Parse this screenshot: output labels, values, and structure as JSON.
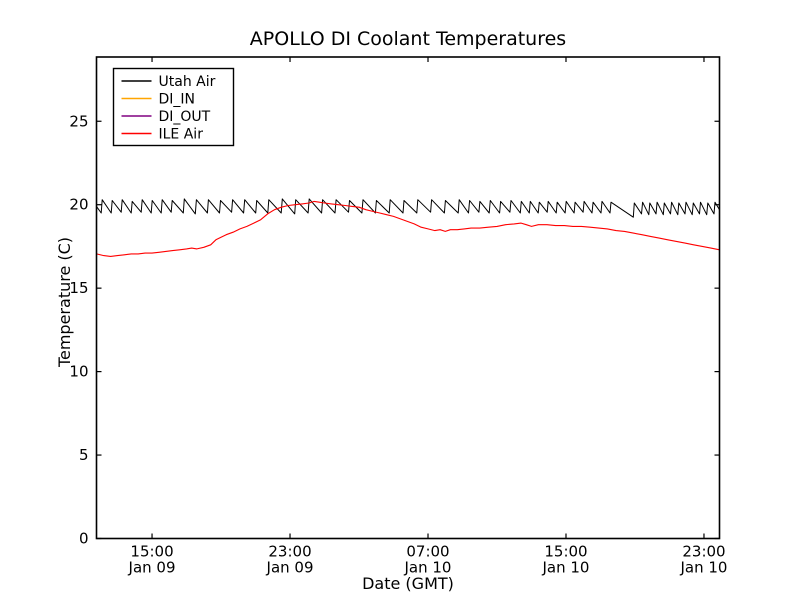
{
  "figure": {
    "background": "#ffffff",
    "frame_color": "#000000"
  },
  "chart_data": {
    "type": "line",
    "title": "APOLLO DI Coolant Temperatures",
    "xlabel": "Date (GMT)",
    "ylabel": "Temperature (C)",
    "x_unit": "hours since Jan 09 00:00 GMT",
    "xlim": [
      11.78,
      47.9
    ],
    "ylim": [
      0,
      28.85
    ],
    "grid": false,
    "yticks": [
      0,
      5,
      10,
      15,
      20,
      25
    ],
    "xticks": [
      {
        "t": 15,
        "time": "15:00",
        "date": "Jan 09"
      },
      {
        "t": 23,
        "time": "23:00",
        "date": "Jan 09"
      },
      {
        "t": 31,
        "time": "07:00",
        "date": "Jan 10"
      },
      {
        "t": 39,
        "time": "15:00",
        "date": "Jan 10"
      },
      {
        "t": 47,
        "time": "23:00",
        "date": "Jan 10"
      }
    ],
    "legend": {
      "position": "upper left",
      "entries": [
        {
          "label": "Utah Air",
          "color": "#000000"
        },
        {
          "label": "DI_IN",
          "color": "#ffa500"
        },
        {
          "label": "DI_OUT",
          "color": "#800080"
        },
        {
          "label": "ILE Air",
          "color": "#ff0000"
        }
      ]
    },
    "series": [
      {
        "name": "Utah Air",
        "color": "#000000",
        "width": 1.0,
        "points": [
          [
            11.78,
            19.9
          ],
          [
            12.05,
            19.5
          ],
          [
            12.11,
            20.3
          ],
          [
            12.63,
            19.5
          ],
          [
            12.69,
            20.25
          ],
          [
            13.21,
            19.55
          ],
          [
            13.27,
            20.3
          ],
          [
            13.79,
            19.5
          ],
          [
            13.85,
            20.2
          ],
          [
            14.37,
            19.55
          ],
          [
            14.43,
            20.3
          ],
          [
            14.95,
            19.5
          ],
          [
            15.01,
            20.25
          ],
          [
            15.53,
            19.5
          ],
          [
            15.59,
            20.3
          ],
          [
            16.11,
            19.55
          ],
          [
            16.17,
            20.25
          ],
          [
            16.81,
            19.5
          ],
          [
            16.87,
            20.35
          ],
          [
            17.51,
            19.45
          ],
          [
            17.57,
            20.3
          ],
          [
            18.21,
            19.5
          ],
          [
            18.27,
            20.3
          ],
          [
            18.91,
            19.5
          ],
          [
            18.97,
            20.25
          ],
          [
            19.61,
            19.55
          ],
          [
            19.67,
            20.3
          ],
          [
            20.31,
            19.5
          ],
          [
            20.37,
            20.3
          ],
          [
            21.01,
            19.5
          ],
          [
            21.07,
            20.25
          ],
          [
            21.71,
            19.5
          ],
          [
            21.77,
            20.3
          ],
          [
            22.49,
            19.5
          ],
          [
            22.55,
            20.35
          ],
          [
            23.27,
            19.45
          ],
          [
            23.33,
            20.3
          ],
          [
            24.05,
            19.5
          ],
          [
            24.11,
            20.35
          ],
          [
            24.83,
            19.5
          ],
          [
            24.89,
            20.3
          ],
          [
            25.61,
            19.5
          ],
          [
            25.67,
            20.3
          ],
          [
            26.39,
            19.55
          ],
          [
            26.45,
            20.25
          ],
          [
            27.17,
            19.5
          ],
          [
            27.23,
            20.3
          ],
          [
            27.95,
            19.5
          ],
          [
            28.01,
            20.25
          ],
          [
            28.75,
            19.5
          ],
          [
            28.81,
            20.3
          ],
          [
            29.55,
            19.5
          ],
          [
            29.61,
            20.25
          ],
          [
            30.35,
            19.5
          ],
          [
            30.41,
            20.3
          ],
          [
            31.15,
            19.55
          ],
          [
            31.21,
            20.3
          ],
          [
            31.95,
            19.5
          ],
          [
            32.01,
            20.25
          ],
          [
            32.75,
            19.5
          ],
          [
            32.81,
            20.3
          ],
          [
            33.35,
            19.5
          ],
          [
            33.41,
            20.25
          ],
          [
            33.95,
            19.55
          ],
          [
            34.01,
            20.2
          ],
          [
            34.55,
            19.5
          ],
          [
            34.61,
            20.25
          ],
          [
            35.15,
            19.5
          ],
          [
            35.21,
            20.2
          ],
          [
            35.75,
            19.55
          ],
          [
            35.81,
            20.25
          ],
          [
            36.35,
            19.5
          ],
          [
            36.41,
            20.2
          ],
          [
            36.87,
            19.5
          ],
          [
            36.93,
            20.2
          ],
          [
            37.39,
            19.5
          ],
          [
            37.45,
            20.15
          ],
          [
            37.91,
            19.55
          ],
          [
            37.97,
            20.2
          ],
          [
            38.43,
            19.5
          ],
          [
            38.49,
            20.15
          ],
          [
            38.95,
            19.5
          ],
          [
            39.01,
            20.2
          ],
          [
            39.47,
            19.5
          ],
          [
            39.53,
            20.15
          ],
          [
            39.99,
            19.55
          ],
          [
            40.05,
            20.2
          ],
          [
            40.51,
            19.5
          ],
          [
            40.57,
            20.15
          ],
          [
            41.03,
            19.5
          ],
          [
            41.09,
            20.2
          ],
          [
            41.55,
            19.5
          ],
          [
            41.61,
            20.15
          ],
          [
            42.9,
            19.25
          ],
          [
            42.96,
            20.1
          ],
          [
            43.38,
            19.45
          ],
          [
            43.44,
            20.15
          ],
          [
            43.8,
            19.4
          ],
          [
            43.86,
            20.1
          ],
          [
            44.22,
            19.45
          ],
          [
            44.28,
            20.15
          ],
          [
            44.64,
            19.4
          ],
          [
            44.7,
            20.1
          ],
          [
            45.06,
            19.45
          ],
          [
            45.12,
            20.15
          ],
          [
            45.48,
            19.4
          ],
          [
            45.54,
            20.1
          ],
          [
            45.9,
            19.45
          ],
          [
            45.96,
            20.15
          ],
          [
            46.32,
            19.4
          ],
          [
            46.38,
            20.1
          ],
          [
            46.74,
            19.45
          ],
          [
            46.8,
            20.15
          ],
          [
            47.16,
            19.4
          ],
          [
            47.22,
            20.1
          ],
          [
            47.58,
            19.45
          ],
          [
            47.64,
            20.15
          ],
          [
            47.9,
            19.7
          ]
        ]
      },
      {
        "name": "DI_IN",
        "color": "#ffa500",
        "width": 1.0,
        "points": []
      },
      {
        "name": "DI_OUT",
        "color": "#800080",
        "width": 1.0,
        "points": []
      },
      {
        "name": "ILE Air",
        "color": "#ff0000",
        "width": 1.1,
        "points": [
          [
            11.78,
            17.05
          ],
          [
            12.2,
            16.95
          ],
          [
            12.6,
            16.9
          ],
          [
            13.0,
            16.95
          ],
          [
            13.4,
            17.0
          ],
          [
            13.8,
            17.05
          ],
          [
            14.2,
            17.05
          ],
          [
            14.6,
            17.1
          ],
          [
            15.0,
            17.1
          ],
          [
            15.4,
            17.15
          ],
          [
            15.8,
            17.2
          ],
          [
            16.2,
            17.25
          ],
          [
            16.6,
            17.3
          ],
          [
            17.0,
            17.35
          ],
          [
            17.3,
            17.4
          ],
          [
            17.6,
            17.35
          ],
          [
            18.0,
            17.45
          ],
          [
            18.4,
            17.6
          ],
          [
            18.7,
            17.9
          ],
          [
            19.0,
            18.05
          ],
          [
            19.3,
            18.2
          ],
          [
            19.7,
            18.35
          ],
          [
            20.1,
            18.55
          ],
          [
            20.5,
            18.7
          ],
          [
            20.9,
            18.9
          ],
          [
            21.3,
            19.1
          ],
          [
            21.7,
            19.45
          ],
          [
            22.1,
            19.7
          ],
          [
            22.5,
            19.85
          ],
          [
            22.9,
            19.95
          ],
          [
            23.3,
            20.0
          ],
          [
            23.7,
            20.05
          ],
          [
            24.1,
            20.1
          ],
          [
            24.4,
            20.2
          ],
          [
            24.7,
            20.15
          ],
          [
            25.0,
            20.1
          ],
          [
            25.4,
            20.05
          ],
          [
            25.8,
            20.0
          ],
          [
            26.2,
            19.95
          ],
          [
            26.6,
            19.9
          ],
          [
            27.0,
            19.85
          ],
          [
            27.4,
            19.7
          ],
          [
            27.8,
            19.6
          ],
          [
            28.2,
            19.5
          ],
          [
            28.6,
            19.4
          ],
          [
            29.0,
            19.3
          ],
          [
            29.4,
            19.15
          ],
          [
            29.8,
            19.0
          ],
          [
            30.2,
            18.85
          ],
          [
            30.6,
            18.65
          ],
          [
            31.0,
            18.55
          ],
          [
            31.4,
            18.45
          ],
          [
            31.7,
            18.5
          ],
          [
            32.0,
            18.4
          ],
          [
            32.3,
            18.5
          ],
          [
            32.7,
            18.5
          ],
          [
            33.1,
            18.55
          ],
          [
            33.5,
            18.6
          ],
          [
            34.0,
            18.6
          ],
          [
            34.5,
            18.65
          ],
          [
            35.0,
            18.7
          ],
          [
            35.5,
            18.8
          ],
          [
            36.0,
            18.85
          ],
          [
            36.4,
            18.9
          ],
          [
            36.7,
            18.8
          ],
          [
            37.0,
            18.7
          ],
          [
            37.4,
            18.8
          ],
          [
            37.9,
            18.8
          ],
          [
            38.4,
            18.75
          ],
          [
            38.9,
            18.75
          ],
          [
            39.4,
            18.7
          ],
          [
            39.9,
            18.7
          ],
          [
            40.4,
            18.65
          ],
          [
            40.9,
            18.6
          ],
          [
            41.4,
            18.55
          ],
          [
            41.9,
            18.45
          ],
          [
            42.4,
            18.4
          ],
          [
            42.9,
            18.3
          ],
          [
            43.4,
            18.2
          ],
          [
            43.9,
            18.1
          ],
          [
            44.4,
            18.0
          ],
          [
            44.9,
            17.9
          ],
          [
            45.4,
            17.8
          ],
          [
            45.9,
            17.7
          ],
          [
            46.4,
            17.6
          ],
          [
            46.9,
            17.5
          ],
          [
            47.4,
            17.4
          ],
          [
            47.9,
            17.3
          ]
        ]
      }
    ]
  }
}
